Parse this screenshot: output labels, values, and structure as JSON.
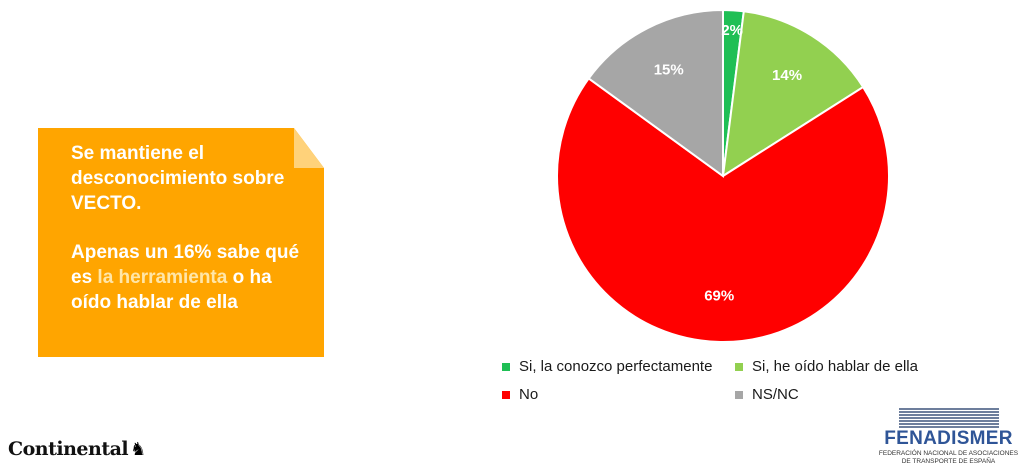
{
  "callout": {
    "paragraph1": "Se mantiene el desconocimiento sobre VECTO.",
    "paragraph2_before": "Apenas un 16% sabe qué es ",
    "paragraph2_highlight": "la herramienta",
    "paragraph2_after": " o ha oído hablar de ella",
    "background_color": "#ffa500"
  },
  "chart_data": {
    "type": "pie",
    "title": "",
    "slices": [
      {
        "label": "Si, la conozco perfectamente",
        "value": 2,
        "display": "2%",
        "color": "#1fbf55"
      },
      {
        "label": "Si, he oído hablar de ella",
        "value": 14,
        "display": "14%",
        "color": "#92d050"
      },
      {
        "label": "No",
        "value": 69,
        "display": "69%",
        "color": "#ff0000"
      },
      {
        "label": "NS/NC",
        "value": 15,
        "display": "15%",
        "color": "#a6a6a6"
      }
    ],
    "legend_placement": "bottom"
  },
  "logos": {
    "continental": "Continental",
    "fenadismer_name": "FENADISMER",
    "fenadismer_sub1": "FEDERACIÓN NACIONAL DE ASOCIACIONES",
    "fenadismer_sub2": "DE TRANSPORTE DE ESPAÑA"
  }
}
